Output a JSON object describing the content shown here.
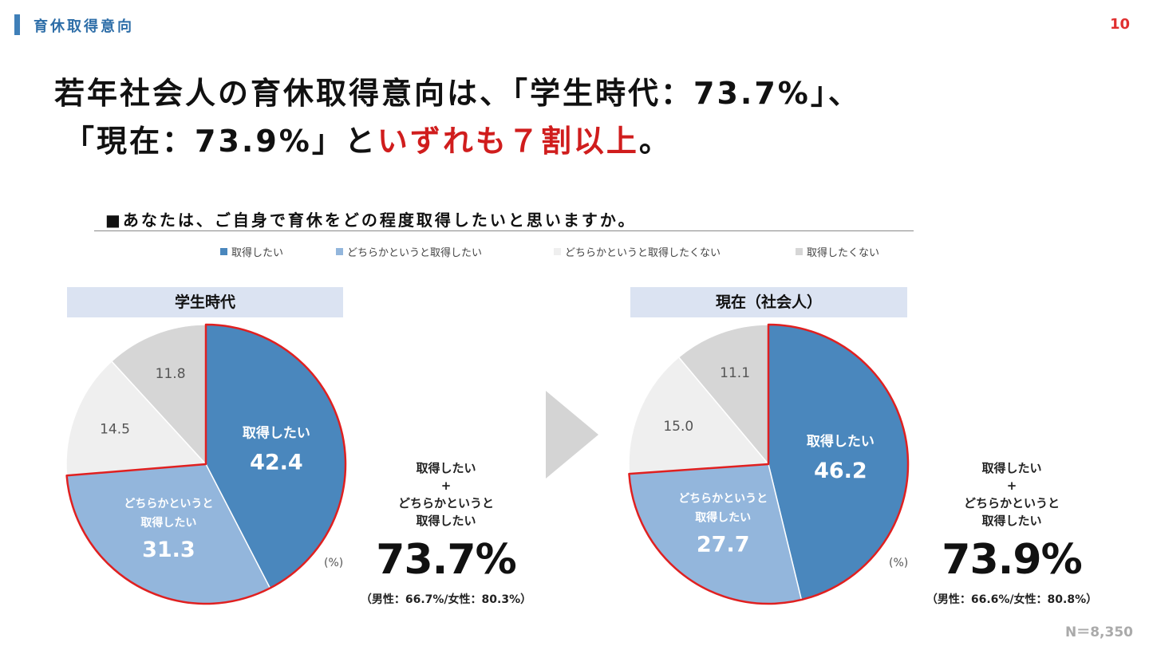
{
  "header": {
    "section_label": "育休取得意向",
    "page_number": "10"
  },
  "headline": {
    "line1": "若年社会人の育休取得意向は、「学生時代：73.7%」、",
    "line2_prefix": "「現在：73.9%」と",
    "line2_highlight": "いずれも７割以上",
    "line2_suffix": "。"
  },
  "question": "■あなたは、ご自身で育休をどの程度取得したいと思いますか。",
  "legend": [
    {
      "label": "取得したい",
      "color": "#4a87bd"
    },
    {
      "label": "どちらかというと取得したい",
      "color": "#93b6dc"
    },
    {
      "label": "どちらかというと取得したくない",
      "color": "#efefef"
    },
    {
      "label": "取得したくない",
      "color": "#d6d6d6"
    }
  ],
  "unit": "(%)",
  "chart_data": [
    {
      "type": "pie",
      "title": "学生時代",
      "slices": [
        {
          "label": "取得したい",
          "value": 42.4,
          "color": "#4a87bd"
        },
        {
          "label": "どちらかというと取得したい",
          "value": 31.3,
          "color": "#93b6dc"
        },
        {
          "label": "どちらかというと取得したくない",
          "value": 14.5,
          "color": "#efefef"
        },
        {
          "label": "取得したくない",
          "value": 11.8,
          "color": "#d6d6d6"
        }
      ],
      "slice_text": {
        "s0_label": "取得したい",
        "s1_label_a": "どちらかというと",
        "s1_label_b": "取得したい"
      },
      "summary": {
        "line1": "取得したい",
        "line2": "+",
        "line3": "どちらかというと",
        "line4": "取得したい",
        "total": "73.7%",
        "breakdown": "（男性：66.7%/女性：80.3%）"
      }
    },
    {
      "type": "pie",
      "title": "現在（社会人）",
      "slices": [
        {
          "label": "取得したい",
          "value": 46.2,
          "color": "#4a87bd"
        },
        {
          "label": "どちらかというと取得したい",
          "value": 27.7,
          "color": "#93b6dc"
        },
        {
          "label": "どちらかというと取得したくない",
          "value": 15.0,
          "color": "#efefef"
        },
        {
          "label": "取得したくない",
          "value": 11.1,
          "color": "#d6d6d6"
        }
      ],
      "slice_text": {
        "s0_label": "取得したい",
        "s1_label_a": "どちらかというと",
        "s1_label_b": "取得したい"
      },
      "summary": {
        "line1": "取得したい",
        "line2": "+",
        "line3": "どちらかというと",
        "line4": "取得したい",
        "total": "73.9%",
        "breakdown": "（男性：66.6%/女性：80.8%）"
      }
    }
  ],
  "highlight_color": "#e02020",
  "sample_size": "N＝8,350"
}
